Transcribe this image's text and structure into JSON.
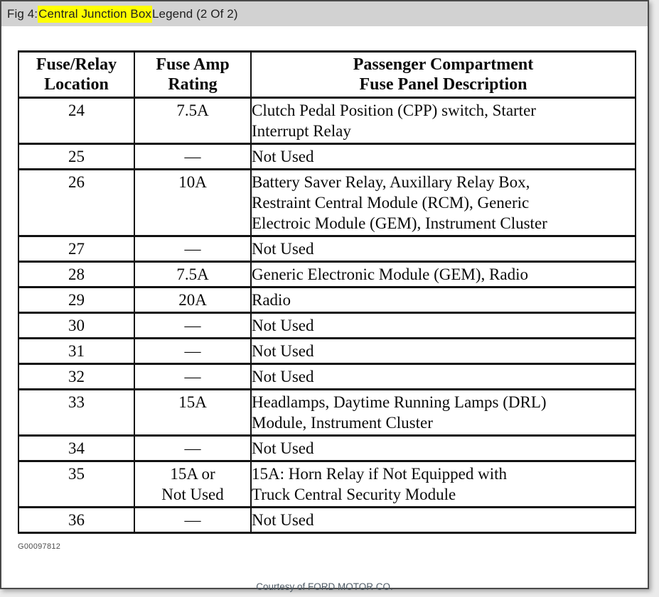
{
  "header": {
    "prefix": "Fig 4: ",
    "highlight": "Central Junction Box",
    "suffix": " Legend (2 Of 2)",
    "highlight_color": "#ffff00",
    "bar_color": "#d2d2d2"
  },
  "table": {
    "columns": [
      "Fuse/Relay\nLocation",
      "Fuse Amp\nRating",
      "Passenger Compartment\nFuse Panel Description"
    ],
    "rows": [
      {
        "location": "24",
        "rating": "7.5A",
        "description": "Clutch Pedal Position (CPP) switch, Starter\nInterrupt Relay"
      },
      {
        "location": "25",
        "rating": "—",
        "description": "Not Used"
      },
      {
        "location": "26",
        "rating": "10A",
        "description": "Battery Saver Relay, Auxillary Relay Box,\nRestraint Central Module (RCM), Generic\nElectroic Module (GEM), Instrument Cluster"
      },
      {
        "location": "27",
        "rating": "—",
        "description": "Not Used"
      },
      {
        "location": "28",
        "rating": "7.5A",
        "description": "Generic Electronic Module (GEM), Radio"
      },
      {
        "location": "29",
        "rating": "20A",
        "description": "Radio"
      },
      {
        "location": "30",
        "rating": "—",
        "description": "Not Used"
      },
      {
        "location": "31",
        "rating": "—",
        "description": "Not Used"
      },
      {
        "location": "32",
        "rating": "—",
        "description": "Not Used"
      },
      {
        "location": "33",
        "rating": "15A",
        "description": "Headlamps, Daytime Running Lamps (DRL)\nModule, Instrument Cluster"
      },
      {
        "location": "34",
        "rating": "—",
        "description": "Not Used"
      },
      {
        "location": "35",
        "rating": "15A or\nNot Used",
        "description": "15A: Horn Relay if Not Equipped with\nTruck Central Security Module"
      },
      {
        "location": "36",
        "rating": "—",
        "description": "Not Used"
      }
    ]
  },
  "footer": {
    "figure_id": "G00097812",
    "courtesy": "Courtesy of FORD MOTOR CO."
  }
}
